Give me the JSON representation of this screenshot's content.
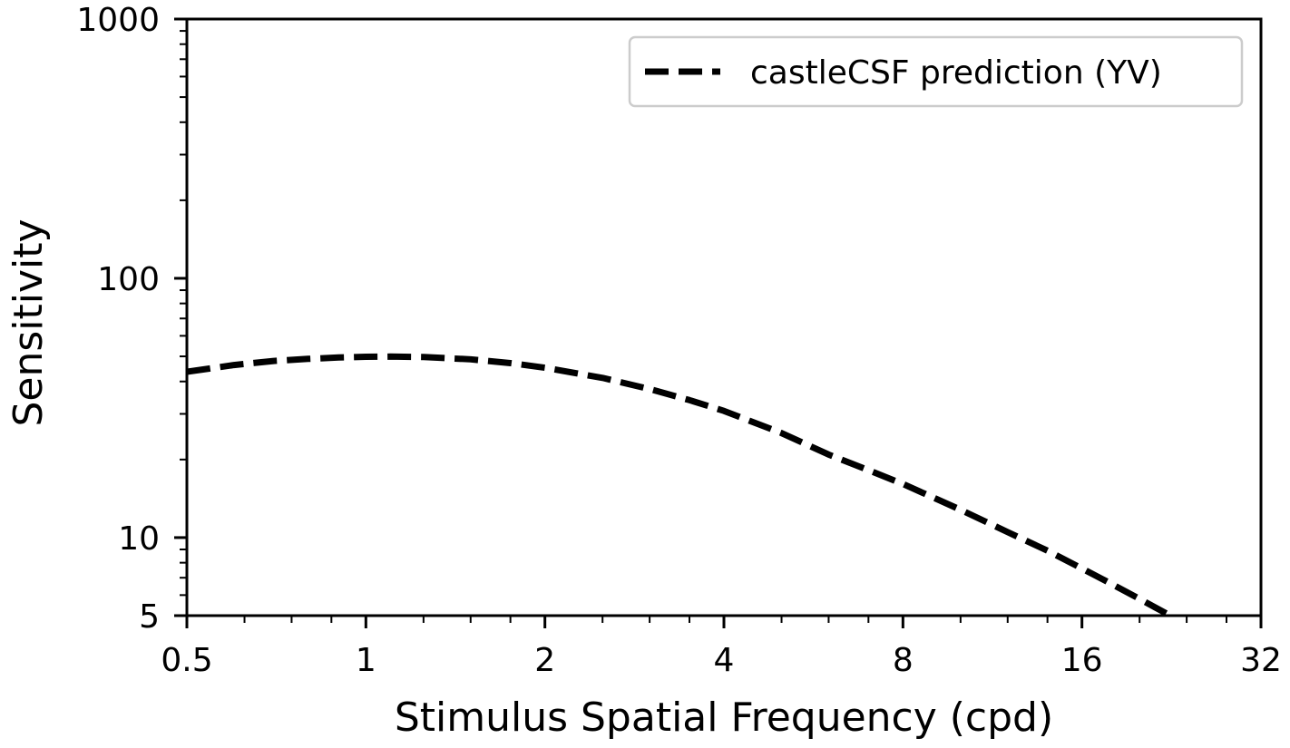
{
  "chart_data": {
    "type": "line",
    "xlabel": "Stimulus Spatial Frequency (cpd)",
    "ylabel": "Sensitivity",
    "xscale": "log2",
    "yscale": "log10",
    "xlim": [
      0.5,
      32
    ],
    "ylim": [
      5,
      1000
    ],
    "x_ticks": [
      {
        "value": 0.5,
        "label": "0.5"
      },
      {
        "value": 1,
        "label": "1"
      },
      {
        "value": 2,
        "label": "2"
      },
      {
        "value": 4,
        "label": "4"
      },
      {
        "value": 8,
        "label": "8"
      },
      {
        "value": 16,
        "label": "16"
      },
      {
        "value": 32,
        "label": "32"
      }
    ],
    "y_ticks": [
      {
        "value": 5,
        "label": "5"
      },
      {
        "value": 10,
        "label": "10"
      },
      {
        "value": 100,
        "label": "100"
      },
      {
        "value": 1000,
        "label": "1000"
      }
    ],
    "grid": false,
    "legend": {
      "position": "top-right"
    },
    "series": [
      {
        "name": "castleCSF prediction (YV)",
        "color": "#000000",
        "line_style": "dashed",
        "x": [
          0.5,
          0.6,
          0.7,
          0.8,
          0.9,
          1.0,
          1.1,
          1.25,
          1.5,
          1.75,
          2.0,
          2.5,
          3.0,
          3.5,
          4.0,
          5.0,
          6.0,
          7.0,
          8.0,
          10.0,
          12.0,
          14.0,
          16.0,
          18.0,
          20.0,
          22.0,
          23.5
        ],
        "y": [
          43.6,
          46.3,
          48.0,
          48.9,
          49.5,
          49.8,
          49.9,
          49.7,
          48.7,
          47.1,
          45.2,
          41.3,
          37.4,
          33.9,
          30.8,
          25.3,
          20.9,
          18.2,
          16.1,
          12.8,
          10.5,
          8.9,
          7.6,
          6.6,
          5.8,
          5.15,
          4.75
        ]
      }
    ]
  }
}
